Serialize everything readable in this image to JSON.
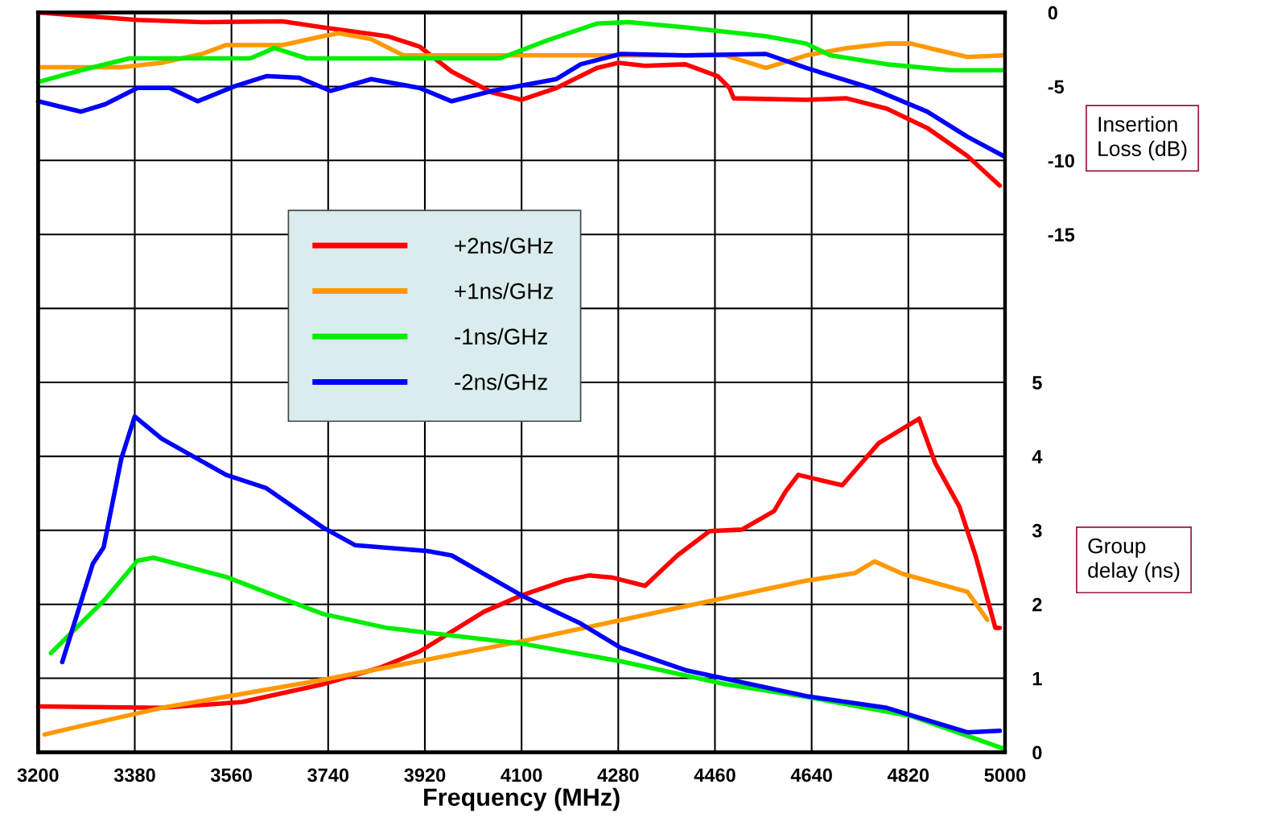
{
  "chart_data": {
    "type": "line",
    "xlabel": "Frequency (MHz)",
    "y2label": "Insertion Loss (dB)",
    "y3label": "Group delay (ns)",
    "xlim": [
      3200,
      5000
    ],
    "xticks": [
      3200,
      3380,
      3560,
      3740,
      3920,
      4100,
      4280,
      4460,
      4640,
      4820,
      5000
    ],
    "y2lim": [
      -50,
      0
    ],
    "y2ticks": [
      0,
      -5,
      -10,
      -15,
      {
        "value": -20,
        "label": null
      }
    ],
    "y3lim": [
      0,
      10
    ],
    "y3ticks": [
      0,
      1,
      2,
      3,
      4,
      5
    ],
    "grid": true,
    "legend": "center",
    "line_style": "solid",
    "series": [
      {
        "name": "+2ns/GHz",
        "color": "#ff0000",
        "axis": "y2",
        "x": [
          3200,
          3385,
          3505,
          3655,
          3730,
          3850,
          3910,
          3970,
          4045,
          4100,
          4165,
          4240,
          4280,
          4330,
          4405,
          4465,
          4487,
          4495,
          4630,
          4705,
          4780,
          4855,
          4930,
          4990
        ],
        "values": [
          0,
          -0.5,
          -0.65,
          -0.6,
          -1.0,
          -1.6,
          -2.3,
          -4.0,
          -5.4,
          -5.9,
          -5.1,
          -3.75,
          -3.4,
          -3.6,
          -3.5,
          -4.3,
          -5.1,
          -5.8,
          -5.9,
          -5.8,
          -6.5,
          -7.8,
          -9.7,
          -11.7
        ]
      },
      {
        "name": "+1ns/GHz",
        "color": "#ff9900",
        "axis": "y2",
        "x": [
          3200,
          3355,
          3430,
          3505,
          3550,
          3655,
          3730,
          3760,
          3820,
          3880,
          3955,
          4180,
          4480,
          4555,
          4630,
          4705,
          4780,
          4825,
          4870,
          4930,
          4997
        ],
        "values": [
          -3.7,
          -3.7,
          -3.4,
          -2.8,
          -2.2,
          -2.2,
          -1.6,
          -1.4,
          -1.8,
          -2.9,
          -2.9,
          -2.9,
          -2.9,
          -3.75,
          -2.9,
          -2.4,
          -2.1,
          -2.1,
          -2.5,
          -3.0,
          -2.9
        ]
      },
      {
        "name": "-1ns/GHz",
        "color": "#00ee00",
        "axis": "y2",
        "x": [
          3200,
          3280,
          3370,
          3505,
          3595,
          3640,
          3700,
          3805,
          3955,
          4060,
          4150,
          4240,
          4300,
          4405,
          4555,
          4630,
          4675,
          4780,
          4900,
          4997
        ],
        "values": [
          -4.7,
          -3.9,
          -3.1,
          -3.1,
          -3.1,
          -2.4,
          -3.1,
          -3.1,
          -3.1,
          -3.1,
          -1.85,
          -0.75,
          -0.65,
          -1.0,
          -1.6,
          -2.1,
          -2.9,
          -3.5,
          -3.9,
          -3.9
        ]
      },
      {
        "name": "-2ns/GHz",
        "color": "#0000ff",
        "axis": "y2",
        "x": [
          3200,
          3280,
          3325,
          3385,
          3445,
          3497,
          3565,
          3625,
          3685,
          3745,
          3820,
          3910,
          3970,
          4045,
          4165,
          4210,
          4285,
          4405,
          4555,
          4630,
          4750,
          4855,
          4930,
          4997
        ],
        "values": [
          -6.0,
          -6.7,
          -6.2,
          -5.1,
          -5.1,
          -6.0,
          -5.0,
          -4.3,
          -4.4,
          -5.3,
          -4.5,
          -5.1,
          -6.0,
          -5.3,
          -4.5,
          -3.5,
          -2.8,
          -2.9,
          -2.8,
          -3.75,
          -5.1,
          -6.7,
          -8.4,
          -9.7
        ]
      },
      {
        "color": "#ff0000",
        "axis": "y3",
        "x": [
          3200,
          3430,
          3580,
          3730,
          3835,
          3910,
          3970,
          4030,
          4100,
          4180,
          4225,
          4270,
          4330,
          4390,
          4450,
          4510,
          4570,
          4592,
          4615,
          4697,
          4765,
          4840,
          4870,
          4915,
          4945,
          4982,
          4990
        ],
        "values": [
          0.62,
          0.6,
          0.68,
          0.92,
          1.14,
          1.36,
          1.63,
          1.9,
          2.12,
          2.32,
          2.39,
          2.36,
          2.25,
          2.66,
          2.99,
          3.01,
          3.26,
          3.53,
          3.75,
          3.61,
          4.18,
          4.51,
          3.91,
          3.32,
          2.66,
          1.68,
          1.68
        ]
      },
      {
        "color": "#ff9900",
        "axis": "y3",
        "x": [
          3212,
          3265,
          3430,
          3730,
          4100,
          4480,
          4630,
          4720,
          4757,
          4810,
          4930,
          4967
        ],
        "values": [
          0.24,
          0.33,
          0.6,
          0.98,
          1.5,
          2.09,
          2.32,
          2.42,
          2.58,
          2.41,
          2.17,
          1.79
        ]
      },
      {
        "color": "#00ee00",
        "axis": "y3",
        "x": [
          3224,
          3325,
          3385,
          3415,
          3550,
          3730,
          3850,
          4100,
          4285,
          4480,
          4630,
          4825,
          4997
        ],
        "values": [
          1.34,
          2.07,
          2.59,
          2.63,
          2.37,
          1.87,
          1.68,
          1.47,
          1.23,
          0.92,
          0.75,
          0.49,
          0.05
        ]
      },
      {
        "color": "#0000ff",
        "axis": "y3",
        "x": [
          3245,
          3302,
          3322,
          3355,
          3380,
          3430,
          3550,
          3625,
          3730,
          3790,
          3925,
          3970,
          4100,
          4210,
          4285,
          4405,
          4630,
          4780,
          4930,
          4990
        ],
        "values": [
          1.22,
          2.55,
          2.77,
          3.97,
          4.54,
          4.24,
          3.75,
          3.57,
          3.04,
          2.8,
          2.72,
          2.66,
          2.12,
          1.74,
          1.41,
          1.11,
          0.76,
          0.6,
          0.27,
          0.29
        ]
      }
    ]
  }
}
